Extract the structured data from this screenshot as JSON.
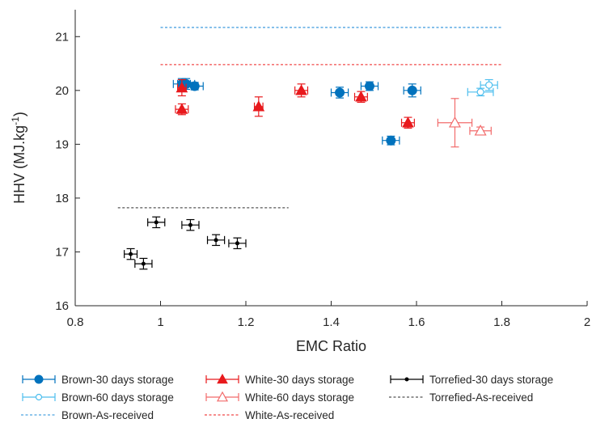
{
  "chart_data": {
    "type": "scatter",
    "title": "",
    "xlabel": "EMC Ratio",
    "ylabel_main": "HHV (MJ.kg",
    "ylabel_sup": "-1",
    "ylabel_close": ")",
    "xlim": [
      0.8,
      2
    ],
    "ylim": [
      16,
      21.5
    ],
    "xticks": [
      0.8,
      1,
      1.2,
      1.4,
      1.6,
      1.8,
      2
    ],
    "xtick_labels": [
      "0.8",
      "1",
      "1.2",
      "1.4",
      "1.6",
      "1.8",
      "2"
    ],
    "yticks": [
      16,
      17,
      18,
      19,
      20,
      21
    ],
    "ytick_labels": [
      "16",
      "17",
      "18",
      "19",
      "20",
      "21"
    ],
    "grid": false,
    "legend_position": "bottom",
    "series": [
      {
        "name": "Brown-30 days storage",
        "color": "#0072BD",
        "marker": "circle-filled",
        "points": [
          {
            "x": 1.05,
            "y": 20.12,
            "xerr": 0.02,
            "yerr": 0.1
          },
          {
            "x": 1.06,
            "y": 20.12,
            "xerr": 0.02,
            "yerr": 0.1
          },
          {
            "x": 1.08,
            "y": 20.08,
            "xerr": 0.02,
            "yerr": 0.07
          },
          {
            "x": 1.42,
            "y": 19.96,
            "xerr": 0.02,
            "yerr": 0.1
          },
          {
            "x": 1.49,
            "y": 20.08,
            "xerr": 0.02,
            "yerr": 0.08
          },
          {
            "x": 1.54,
            "y": 19.07,
            "xerr": 0.02,
            "yerr": 0.08
          },
          {
            "x": 1.59,
            "y": 20.0,
            "xerr": 0.02,
            "yerr": 0.12
          }
        ]
      },
      {
        "name": "Brown-60 days storage",
        "color": "#4DBEEE",
        "marker": "circle-open",
        "points": [
          {
            "x": 1.75,
            "y": 19.97,
            "xerr": 0.03,
            "yerr": 0.07
          },
          {
            "x": 1.77,
            "y": 20.1,
            "xerr": 0.02,
            "yerr": 0.1
          }
        ]
      },
      {
        "name": "White-30 days storage",
        "color": "#E8191C",
        "marker": "triangle-filled",
        "points": [
          {
            "x": 1.05,
            "y": 20.05,
            "xerr": 0.01,
            "yerr": 0.15
          },
          {
            "x": 1.05,
            "y": 19.65,
            "xerr": 0.015,
            "yerr": 0.1
          },
          {
            "x": 1.23,
            "y": 19.7,
            "xerr": 0.01,
            "yerr": 0.18
          },
          {
            "x": 1.33,
            "y": 20.0,
            "xerr": 0.015,
            "yerr": 0.12
          },
          {
            "x": 1.47,
            "y": 19.88,
            "xerr": 0.015,
            "yerr": 0.1
          },
          {
            "x": 1.58,
            "y": 19.4,
            "xerr": 0.015,
            "yerr": 0.1
          }
        ]
      },
      {
        "name": "White-60 days storage",
        "color": "#F26B6B",
        "marker": "triangle-open",
        "points": [
          {
            "x": 1.69,
            "y": 19.4,
            "xerr": 0.04,
            "yerr": 0.45
          },
          {
            "x": 1.75,
            "y": 19.25,
            "xerr": 0.025,
            "yerr": 0.07
          }
        ]
      },
      {
        "name": "Torrefied-30 days storage",
        "color": "#000000",
        "marker": "dot-filled",
        "points": [
          {
            "x": 0.93,
            "y": 16.96,
            "xerr": 0.015,
            "yerr": 0.1
          },
          {
            "x": 0.96,
            "y": 16.78,
            "xerr": 0.02,
            "yerr": 0.1
          },
          {
            "x": 0.99,
            "y": 17.55,
            "xerr": 0.02,
            "yerr": 0.1
          },
          {
            "x": 1.07,
            "y": 17.5,
            "xerr": 0.02,
            "yerr": 0.1
          },
          {
            "x": 1.13,
            "y": 17.22,
            "xerr": 0.02,
            "yerr": 0.1
          },
          {
            "x": 1.18,
            "y": 17.16,
            "xerr": 0.02,
            "yerr": 0.1
          }
        ]
      }
    ],
    "reference_lines": [
      {
        "name": "Torrefied-As-received",
        "color": "#555555",
        "y": 17.82,
        "x_range": [
          0.9,
          1.3
        ]
      },
      {
        "name": "Brown-As-received",
        "color": "#4DA3E0",
        "y": 21.17,
        "x_range": [
          1.0,
          1.8
        ]
      },
      {
        "name": "White-As-received",
        "color": "#F04848",
        "y": 20.48,
        "x_range": [
          1.0,
          1.8
        ]
      }
    ]
  }
}
